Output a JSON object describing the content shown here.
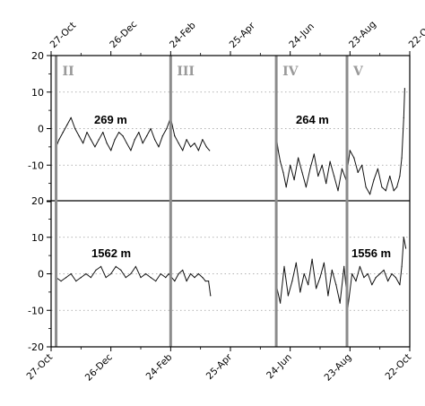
{
  "chart_data": {
    "type": "line",
    "title": "",
    "xlabel": "",
    "x_tick_labels": [
      "27-Oct",
      "26-Dec",
      "24-Feb",
      "25-Apr",
      "24-Jun",
      "23-Aug",
      "22-Oct"
    ],
    "xlim_days": [
      0,
      360
    ],
    "period_boundaries_days": [
      5,
      120,
      226,
      297
    ],
    "period_labels": [
      "II",
      "III",
      "IV",
      "V"
    ],
    "colors": {
      "trace": "#111111",
      "period_line": "#8c8c8c",
      "grid": "#9a9a9a",
      "frame": "#000000"
    },
    "grid": "horizontal dotted",
    "panels": [
      {
        "name": "upper",
        "depth_labels": [
          "269 m",
          "264 m"
        ],
        "ylim": [
          -20,
          20
        ],
        "yticks": [
          -20,
          -10,
          0,
          10,
          20
        ],
        "series": [
          {
            "x": [
              5,
              8,
              12,
              16,
              20,
              24,
              28,
              32,
              36,
              40,
              44,
              48,
              52,
              56,
              60,
              64,
              68,
              72,
              76,
              80,
              84,
              88,
              92,
              96,
              100,
              104,
              108,
              112,
              116,
              120,
              124,
              128,
              132,
              136,
              140,
              144,
              148,
              152,
              156,
              159
            ],
            "y": [
              -5,
              -3,
              -1,
              1,
              3,
              0,
              -2,
              -4,
              -1,
              -3,
              -5,
              -3,
              -1,
              -4,
              -6,
              -3,
              -1,
              -2,
              -4,
              -6,
              -3,
              -1,
              -4,
              -2,
              0,
              -3,
              -5,
              -2,
              0,
              3,
              -2,
              -4,
              -6,
              -3,
              -5,
              -4,
              -6,
              -3,
              -5,
              -6
            ]
          },
          {
            "x": [
              226,
              228,
              230,
              233,
              236,
              240,
              244,
              248,
              252,
              256,
              260,
              264,
              268,
              272,
              276,
              280,
              284,
              288,
              292,
              296,
              300,
              304,
              308,
              312,
              316,
              320,
              324,
              328,
              332,
              336,
              340,
              344,
              347,
              350,
              352,
              354,
              355
            ],
            "y": [
              -2,
              -6,
              -9,
              -12,
              -16,
              -10,
              -14,
              -8,
              -12,
              -16,
              -11,
              -7,
              -13,
              -10,
              -15,
              -9,
              -13,
              -17,
              -11,
              -14,
              -6,
              -8,
              -12,
              -10,
              -16,
              -18,
              -14,
              -11,
              -16,
              -17,
              -13,
              -17,
              -16,
              -13,
              -8,
              3,
              11
            ]
          }
        ]
      },
      {
        "name": "lower",
        "depth_labels": [
          "1562 m",
          "1556 m"
        ],
        "ylim": [
          -20,
          20
        ],
        "yticks": [
          -20,
          -10,
          0,
          10,
          20
        ],
        "series": [
          {
            "x": [
              5,
              10,
              15,
              20,
              25,
              30,
              35,
              40,
              45,
              50,
              55,
              60,
              65,
              70,
              75,
              80,
              85,
              90,
              95,
              100,
              105,
              110,
              115,
              118,
              121,
              124,
              128,
              132,
              136,
              140,
              144,
              148,
              152,
              155,
              158,
              160
            ],
            "y": [
              -1,
              -2,
              -1,
              0,
              -2,
              -1,
              0,
              -1,
              1,
              2,
              -1,
              0,
              2,
              1,
              -1,
              0,
              2,
              -1,
              0,
              -1,
              -2,
              0,
              -1,
              0,
              -1,
              -2,
              0,
              1,
              -2,
              0,
              -1,
              0,
              -1,
              -2,
              -2,
              -6
            ]
          },
          {
            "x": [
              226,
              230,
              234,
              238,
              242,
              246,
              250,
              254,
              258,
              262,
              266,
              270,
              274,
              278,
              282,
              286,
              290,
              294,
              298,
              302,
              306,
              310,
              314,
              318,
              322,
              326,
              330,
              334,
              338,
              342,
              346,
              350,
              352,
              354,
              356
            ],
            "y": [
              -3,
              -8,
              2,
              -6,
              -2,
              3,
              -5,
              0,
              -3,
              4,
              -4,
              -1,
              3,
              -6,
              1,
              -3,
              -8,
              2,
              -9,
              0,
              -2,
              2,
              -1,
              0,
              -3,
              -1,
              0,
              1,
              -2,
              0,
              -1,
              -3,
              2,
              10,
              7
            ]
          }
        ]
      }
    ]
  }
}
